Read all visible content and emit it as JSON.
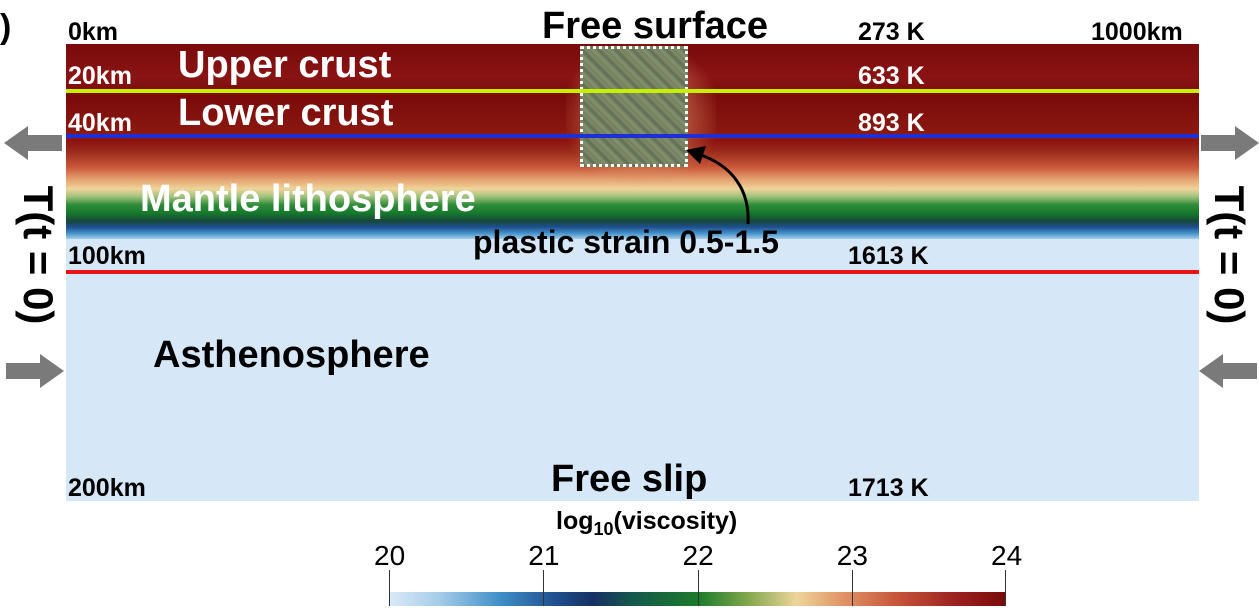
{
  "panel_label": ")",
  "depth_labels": {
    "d0": "0km",
    "d20": "20km",
    "d40": "40km",
    "d100": "100km",
    "d200": "200km",
    "width": "1000km"
  },
  "temperature_labels": {
    "t0": "273 K",
    "t20": "633 K",
    "t40": "893 K",
    "t100": "1613 K",
    "t200": "1713 K"
  },
  "layer_labels": {
    "upper_crust": "Upper crust",
    "lower_crust": "Lower crust",
    "mantle_lithosphere": "Mantle lithosphere",
    "asthenosphere": "Asthenosphere"
  },
  "boundary_labels": {
    "top": "Free surface",
    "bottom": "Free slip"
  },
  "annotation": {
    "strain": "plastic strain 0.5-1.5"
  },
  "side_labels": {
    "left": "T(t = 0)",
    "right": "T(t = 0)"
  },
  "colorbar": {
    "title_prefix": "log",
    "title_sub": "10",
    "title_suffix": "(viscosity)",
    "ticks": [
      "20",
      "21",
      "22",
      "23",
      "24"
    ],
    "min": 20,
    "max": 24
  },
  "colors": {
    "upper_crust_line": "#c6f000",
    "lower_crust_line": "#1c2fd8",
    "lithosphere_base_line": "#e8141a",
    "asthenosphere": "#d6e7f7",
    "high_viscosity": "#7a0a0a"
  }
}
